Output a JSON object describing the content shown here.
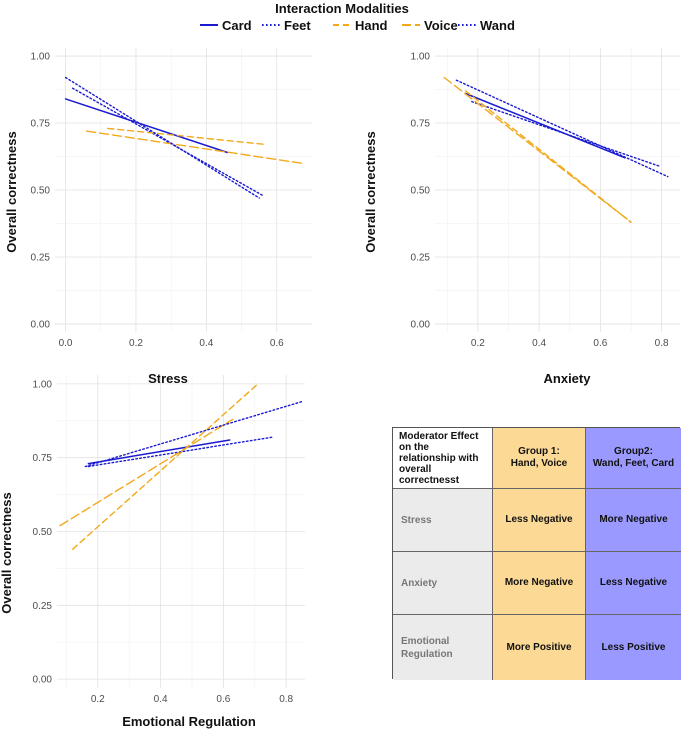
{
  "legend": {
    "title": "Interaction Modalities",
    "items": [
      {
        "label": "Card",
        "color": "#1a1ad1",
        "dash": "solid"
      },
      {
        "label": "Feet",
        "color": "#1a1ad1",
        "dash": "dotted"
      },
      {
        "label": "Hand",
        "color": "#f2a91c",
        "dash": "dashed"
      },
      {
        "label": "Voice",
        "color": "#f2a91c",
        "dash": "longdash"
      },
      {
        "label": "Wand",
        "color": "#1a1ad1",
        "dash": "dotted"
      }
    ]
  },
  "chart_data": [
    {
      "type": "line",
      "title": "",
      "xlabel": "Stress",
      "ylabel": "Overall correctness",
      "xlim": [
        -0.03,
        0.7
      ],
      "ylim": [
        -0.03,
        1.03
      ],
      "xticks": [
        "0.0",
        "0.2",
        "0.4",
        "0.6"
      ],
      "xtick_values": [
        0.0,
        0.2,
        0.4,
        0.6
      ],
      "yticks": [
        "0.00",
        "0.25",
        "0.50",
        "0.75",
        "1.00"
      ],
      "ytick_values": [
        0.0,
        0.25,
        0.5,
        0.75,
        1.0
      ],
      "series": [
        {
          "name": "Card",
          "x": [
            0.0,
            0.46
          ],
          "y": [
            0.84,
            0.64
          ]
        },
        {
          "name": "Feet",
          "x": [
            0.02,
            0.56
          ],
          "y": [
            0.88,
            0.48
          ]
        },
        {
          "name": "Hand",
          "x": [
            0.12,
            0.57
          ],
          "y": [
            0.73,
            0.67
          ]
        },
        {
          "name": "Voice",
          "x": [
            0.06,
            0.67
          ],
          "y": [
            0.72,
            0.6
          ]
        },
        {
          "name": "Wand",
          "x": [
            0.0,
            0.55
          ],
          "y": [
            0.92,
            0.47
          ]
        }
      ]
    },
    {
      "type": "line",
      "title": "",
      "xlabel": "Anxiety",
      "ylabel": "Overall correctness",
      "xlim": [
        0.06,
        0.86
      ],
      "ylim": [
        -0.03,
        1.03
      ],
      "xticks": [
        "0.2",
        "0.4",
        "0.6",
        "0.8"
      ],
      "xtick_values": [
        0.2,
        0.4,
        0.6,
        0.8
      ],
      "yticks": [
        "0.00",
        "0.25",
        "0.50",
        "0.75",
        "1.00"
      ],
      "ytick_values": [
        0.0,
        0.25,
        0.5,
        0.75,
        1.0
      ],
      "series": [
        {
          "name": "Card",
          "x": [
            0.16,
            0.68
          ],
          "y": [
            0.86,
            0.62
          ]
        },
        {
          "name": "Feet",
          "x": [
            0.18,
            0.79
          ],
          "y": [
            0.83,
            0.59
          ]
        },
        {
          "name": "Hand",
          "x": [
            0.16,
            0.7
          ],
          "y": [
            0.87,
            0.38
          ]
        },
        {
          "name": "Voice",
          "x": [
            0.09,
            0.7
          ],
          "y": [
            0.92,
            0.38
          ]
        },
        {
          "name": "Wand",
          "x": [
            0.13,
            0.82
          ],
          "y": [
            0.91,
            0.55
          ]
        }
      ]
    },
    {
      "type": "line",
      "title": "",
      "xlabel": "Emotional Regulation",
      "ylabel": "Overall correctness",
      "xlim": [
        0.07,
        0.86
      ],
      "ylim": [
        -0.03,
        1.03
      ],
      "xticks": [
        "0.2",
        "0.4",
        "0.6",
        "0.8"
      ],
      "xtick_values": [
        0.2,
        0.4,
        0.6,
        0.8
      ],
      "yticks": [
        "0.00",
        "0.25",
        "0.50",
        "0.75",
        "1.00"
      ],
      "ytick_values": [
        0.0,
        0.25,
        0.5,
        0.75,
        1.0
      ],
      "series": [
        {
          "name": "Card",
          "x": [
            0.17,
            0.62
          ],
          "y": [
            0.73,
            0.81
          ]
        },
        {
          "name": "Feet",
          "x": [
            0.17,
            0.76
          ],
          "y": [
            0.72,
            0.82
          ]
        },
        {
          "name": "Hand",
          "x": [
            0.12,
            0.71
          ],
          "y": [
            0.44,
            1.0
          ]
        },
        {
          "name": "Voice",
          "x": [
            0.08,
            0.63
          ],
          "y": [
            0.52,
            0.88
          ]
        },
        {
          "name": "Wand",
          "x": [
            0.16,
            0.85
          ],
          "y": [
            0.72,
            0.94
          ]
        }
      ]
    }
  ],
  "table": {
    "corner": "Moderator Effect on the relationship with overall correctnesst",
    "group1_header": "Group 1:",
    "group1_members": "Hand, Voice",
    "group2_header": "Group2:",
    "group2_members": "Wand, Feet, Card",
    "rows": [
      {
        "label": "Stress",
        "group1": "Less Negative",
        "group2": "More Negative"
      },
      {
        "label": "Anxiety",
        "group1": "More Negative",
        "group2": "Less Negative"
      },
      {
        "label": "Emotional Regulation",
        "group1": "More Positive",
        "group2": "Less Positive"
      }
    ]
  }
}
